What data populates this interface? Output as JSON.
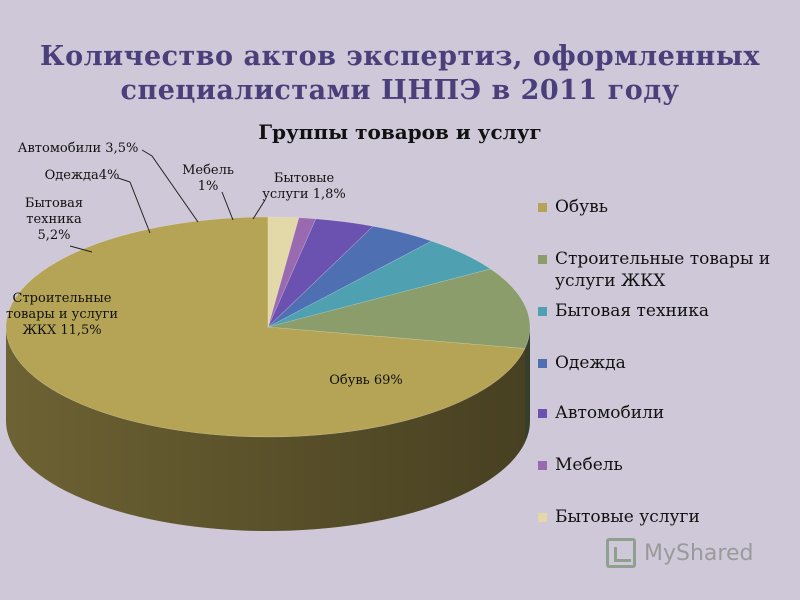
{
  "slide": {
    "title": "Количество актов экспертиз, оформленных специалистами ЦНПЭ в 2011 году"
  },
  "chart_data": {
    "type": "pie",
    "title": "Группы товаров и услуг",
    "categories": [
      "Обувь",
      "Строительные товары и услуги ЖКХ",
      "Бытовая техника",
      "Одежда",
      "Автомобили",
      "Мебель",
      "Бытовые услуги"
    ],
    "values": [
      69,
      11.5,
      5.2,
      4,
      3.5,
      1,
      1.8
    ],
    "unit": "%",
    "data_labels": [
      "Обувь 69%",
      "Строительные товары и услуги ЖКХ 11,5%",
      "Бытовая техника 5,2%",
      "Одежда4%",
      "Автомобили 3,5%",
      "Мебель 1%",
      "Бытовые услуги 1,8%"
    ],
    "colors": [
      "#b5a455",
      "#8b9d6a",
      "#4fa1b2",
      "#4e70b3",
      "#6b52b0",
      "#9a6ab0",
      "#e3d8a8"
    ],
    "legend_position": "right",
    "style": "3d"
  },
  "watermark": "MyShared"
}
